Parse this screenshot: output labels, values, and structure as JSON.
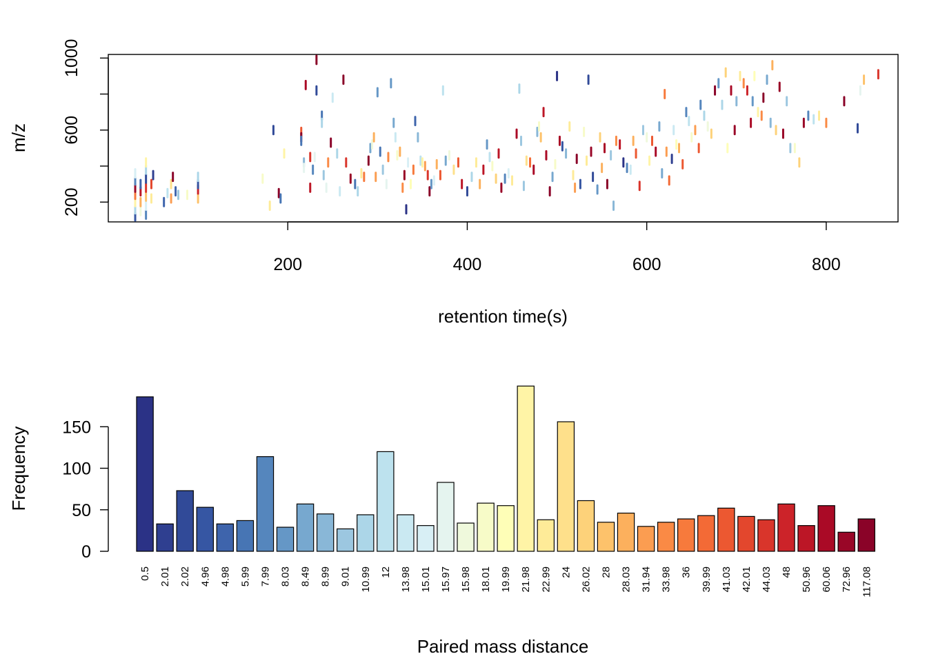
{
  "chart_data": [
    {
      "type": "scatter",
      "title": "",
      "xlabel": "retention time(s)",
      "ylabel": "m/z",
      "xlim": [
        0,
        880
      ],
      "ylim": [
        90,
        1020
      ],
      "x_ticks": [
        "200",
        "400",
        "600",
        "800"
      ],
      "x_tick_values": [
        200,
        400,
        600,
        800
      ],
      "y_ticks": [
        "200",
        "600",
        "1000"
      ],
      "y_tick_values": [
        200,
        600,
        1000
      ],
      "y_minor_ticks": [
        400,
        800
      ],
      "grid": false,
      "legend": "none",
      "point_shape": "short vertical dashes",
      "point_colors_note": "points colored by paired mass distance using the bar palette",
      "points": [
        [
          30,
          120
        ],
        [
          30,
          160
        ],
        [
          30,
          200
        ],
        [
          30,
          240
        ],
        [
          30,
          280
        ],
        [
          30,
          320
        ],
        [
          30,
          360
        ],
        [
          36,
          150
        ],
        [
          36,
          200
        ],
        [
          36,
          260
        ],
        [
          36,
          300
        ],
        [
          42,
          130
        ],
        [
          42,
          180
        ],
        [
          42,
          230
        ],
        [
          42,
          280
        ],
        [
          42,
          330
        ],
        [
          42,
          380
        ],
        [
          42,
          420
        ],
        [
          48,
          220
        ],
        [
          48,
          300
        ],
        [
          50,
          350
        ],
        [
          62,
          200
        ],
        [
          66,
          250
        ],
        [
          70,
          300
        ],
        [
          70,
          220
        ],
        [
          72,
          340
        ],
        [
          75,
          260
        ],
        [
          78,
          240
        ],
        [
          88,
          240
        ],
        [
          100,
          220
        ],
        [
          100,
          270
        ],
        [
          100,
          300
        ],
        [
          100,
          340
        ],
        [
          172,
          330
        ],
        [
          180,
          180
        ],
        [
          184,
          600
        ],
        [
          190,
          250
        ],
        [
          192,
          220
        ],
        [
          196,
          470
        ],
        [
          215,
          590
        ],
        [
          215,
          560
        ],
        [
          215,
          540
        ],
        [
          218,
          420
        ],
        [
          218,
          390
        ],
        [
          220,
          850
        ],
        [
          225,
          450
        ],
        [
          225,
          280
        ],
        [
          228,
          380
        ],
        [
          230,
          450
        ],
        [
          232,
          990
        ],
        [
          232,
          820
        ],
        [
          238,
          680
        ],
        [
          238,
          640
        ],
        [
          240,
          350
        ],
        [
          243,
          280
        ],
        [
          245,
          420
        ],
        [
          248,
          530
        ],
        [
          250,
          780
        ],
        [
          255,
          470
        ],
        [
          258,
          260
        ],
        [
          262,
          880
        ],
        [
          265,
          420
        ],
        [
          270,
          330
        ],
        [
          275,
          300
        ],
        [
          278,
          260
        ],
        [
          282,
          360
        ],
        [
          285,
          340
        ],
        [
          290,
          430
        ],
        [
          292,
          500
        ],
        [
          294,
          520
        ],
        [
          296,
          560
        ],
        [
          298,
          340
        ],
        [
          300,
          810
        ],
        [
          303,
          480
        ],
        [
          306,
          380
        ],
        [
          310,
          300
        ],
        [
          312,
          450
        ],
        [
          315,
          860
        ],
        [
          318,
          640
        ],
        [
          320,
          560
        ],
        [
          322,
          460
        ],
        [
          325,
          480
        ],
        [
          328,
          280
        ],
        [
          330,
          350
        ],
        [
          332,
          160
        ],
        [
          334,
          420
        ],
        [
          337,
          300
        ],
        [
          340,
          380
        ],
        [
          342,
          650
        ],
        [
          345,
          560
        ],
        [
          348,
          430
        ],
        [
          350,
          420
        ],
        [
          353,
          400
        ],
        [
          356,
          350
        ],
        [
          358,
          260
        ],
        [
          360,
          300
        ],
        [
          363,
          320
        ],
        [
          366,
          410
        ],
        [
          370,
          350
        ],
        [
          373,
          820
        ],
        [
          376,
          430
        ],
        [
          380,
          460
        ],
        [
          385,
          380
        ],
        [
          390,
          420
        ],
        [
          394,
          300
        ],
        [
          400,
          260
        ],
        [
          405,
          340
        ],
        [
          410,
          420
        ],
        [
          414,
          300
        ],
        [
          418,
          380
        ],
        [
          422,
          520
        ],
        [
          425,
          450
        ],
        [
          428,
          400
        ],
        [
          432,
          330
        ],
        [
          435,
          470
        ],
        [
          438,
          280
        ],
        [
          442,
          330
        ],
        [
          446,
          360
        ],
        [
          450,
          320
        ],
        [
          455,
          580
        ],
        [
          458,
          830
        ],
        [
          460,
          540
        ],
        [
          463,
          290
        ],
        [
          466,
          430
        ],
        [
          470,
          420
        ],
        [
          474,
          380
        ],
        [
          478,
          590
        ],
        [
          480,
          620
        ],
        [
          482,
          560
        ],
        [
          485,
          700
        ],
        [
          488,
          460
        ],
        [
          492,
          260
        ],
        [
          495,
          340
        ],
        [
          498,
          410
        ],
        [
          500,
          900
        ],
        [
          503,
          540
        ],
        [
          506,
          510
        ],
        [
          510,
          470
        ],
        [
          514,
          620
        ],
        [
          518,
          350
        ],
        [
          520,
          280
        ],
        [
          522,
          440
        ],
        [
          526,
          300
        ],
        [
          530,
          590
        ],
        [
          533,
          430
        ],
        [
          535,
          880
        ],
        [
          538,
          480
        ],
        [
          540,
          340
        ],
        [
          545,
          270
        ],
        [
          548,
          560
        ],
        [
          550,
          390
        ],
        [
          553,
          500
        ],
        [
          556,
          300
        ],
        [
          560,
          460
        ],
        [
          563,
          180
        ],
        [
          566,
          540
        ],
        [
          570,
          520
        ],
        [
          574,
          420
        ],
        [
          578,
          390
        ],
        [
          582,
          380
        ],
        [
          585,
          540
        ],
        [
          588,
          470
        ],
        [
          592,
          290
        ],
        [
          596,
          600
        ],
        [
          600,
          560
        ],
        [
          603,
          430
        ],
        [
          606,
          540
        ],
        [
          610,
          480
        ],
        [
          614,
          620
        ],
        [
          617,
          360
        ],
        [
          620,
          800
        ],
        [
          622,
          480
        ],
        [
          625,
          320
        ],
        [
          628,
          440
        ],
        [
          630,
          600
        ],
        [
          633,
          520
        ],
        [
          636,
          500
        ],
        [
          640,
          410
        ],
        [
          644,
          700
        ],
        [
          647,
          650
        ],
        [
          650,
          560
        ],
        [
          654,
          600
        ],
        [
          658,
          500
        ],
        [
          660,
          740
        ],
        [
          664,
          680
        ],
        [
          668,
          620
        ],
        [
          672,
          580
        ],
        [
          676,
          820
        ],
        [
          680,
          860
        ],
        [
          684,
          740
        ],
        [
          688,
          920
        ],
        [
          690,
          500
        ],
        [
          694,
          820
        ],
        [
          698,
          600
        ],
        [
          700,
          760
        ],
        [
          704,
          900
        ],
        [
          708,
          860
        ],
        [
          712,
          820
        ],
        [
          716,
          640
        ],
        [
          718,
          760
        ],
        [
          720,
          900
        ],
        [
          724,
          700
        ],
        [
          728,
          680
        ],
        [
          730,
          780
        ],
        [
          734,
          880
        ],
        [
          738,
          640
        ],
        [
          740,
          960
        ],
        [
          744,
          600
        ],
        [
          748,
          840
        ],
        [
          752,
          580
        ],
        [
          756,
          760
        ],
        [
          760,
          500
        ],
        [
          765,
          500
        ],
        [
          770,
          420
        ],
        [
          775,
          640
        ],
        [
          780,
          680
        ],
        [
          786,
          660
        ],
        [
          792,
          680
        ],
        [
          800,
          640
        ],
        [
          820,
          760
        ],
        [
          835,
          610
        ],
        [
          838,
          820
        ],
        [
          842,
          880
        ],
        [
          858,
          910
        ]
      ]
    },
    {
      "type": "bar",
      "title": "",
      "xlabel": "Paired mass distance",
      "ylabel": "Frequency",
      "ylim": [
        0,
        200
      ],
      "y_ticks": [
        "0",
        "50",
        "100",
        "150"
      ],
      "y_tick_values": [
        0,
        50,
        100,
        150
      ],
      "grid": false,
      "legend": "none",
      "categories": [
        "0.5",
        "2.01",
        "2.02",
        "4.96",
        "4.98",
        "5.99",
        "7.99",
        "8.03",
        "8.49",
        "8.99",
        "9.01",
        "10.99",
        "12",
        "13.98",
        "15.01",
        "15.97",
        "15.98",
        "18.01",
        "19.99",
        "21.98",
        "22.99",
        "24",
        "26.02",
        "28",
        "28.03",
        "31.94",
        "33.98",
        "36",
        "39.99",
        "41.03",
        "42.01",
        "44.03",
        "48",
        "50.96",
        "60.06",
        "72.96",
        "117.08"
      ],
      "values": [
        186,
        33,
        73,
        53,
        33,
        37,
        114,
        29,
        57,
        45,
        27,
        44,
        120,
        44,
        31,
        83,
        34,
        58,
        55,
        199,
        38,
        156,
        61,
        35,
        46,
        30,
        35,
        39,
        43,
        52,
        42,
        38,
        57,
        31,
        55,
        23,
        39
      ],
      "colors": [
        "#2b3286",
        "#2f3f90",
        "#314a98",
        "#3656a3",
        "#3e64ac",
        "#4775b4",
        "#5586bd",
        "#6597c6",
        "#77a8cf",
        "#89b7d7",
        "#9cc7e0",
        "#acd6e8",
        "#bde2ee",
        "#cae9f2",
        "#d8eff5",
        "#e5f4ef",
        "#eff9dc",
        "#f7fbc8",
        "#fefeb7",
        "#fff4a6",
        "#feeb98",
        "#fee08b",
        "#fdd27a",
        "#fdc26b",
        "#fcb05d",
        "#fb9d51",
        "#fa8a45",
        "#f77a3c",
        "#f36a36",
        "#ec5831",
        "#e3472d",
        "#d9352b",
        "#cc2329",
        "#bc1626",
        "#aa0a26",
        "#990627",
        "#8a0328"
      ]
    }
  ]
}
